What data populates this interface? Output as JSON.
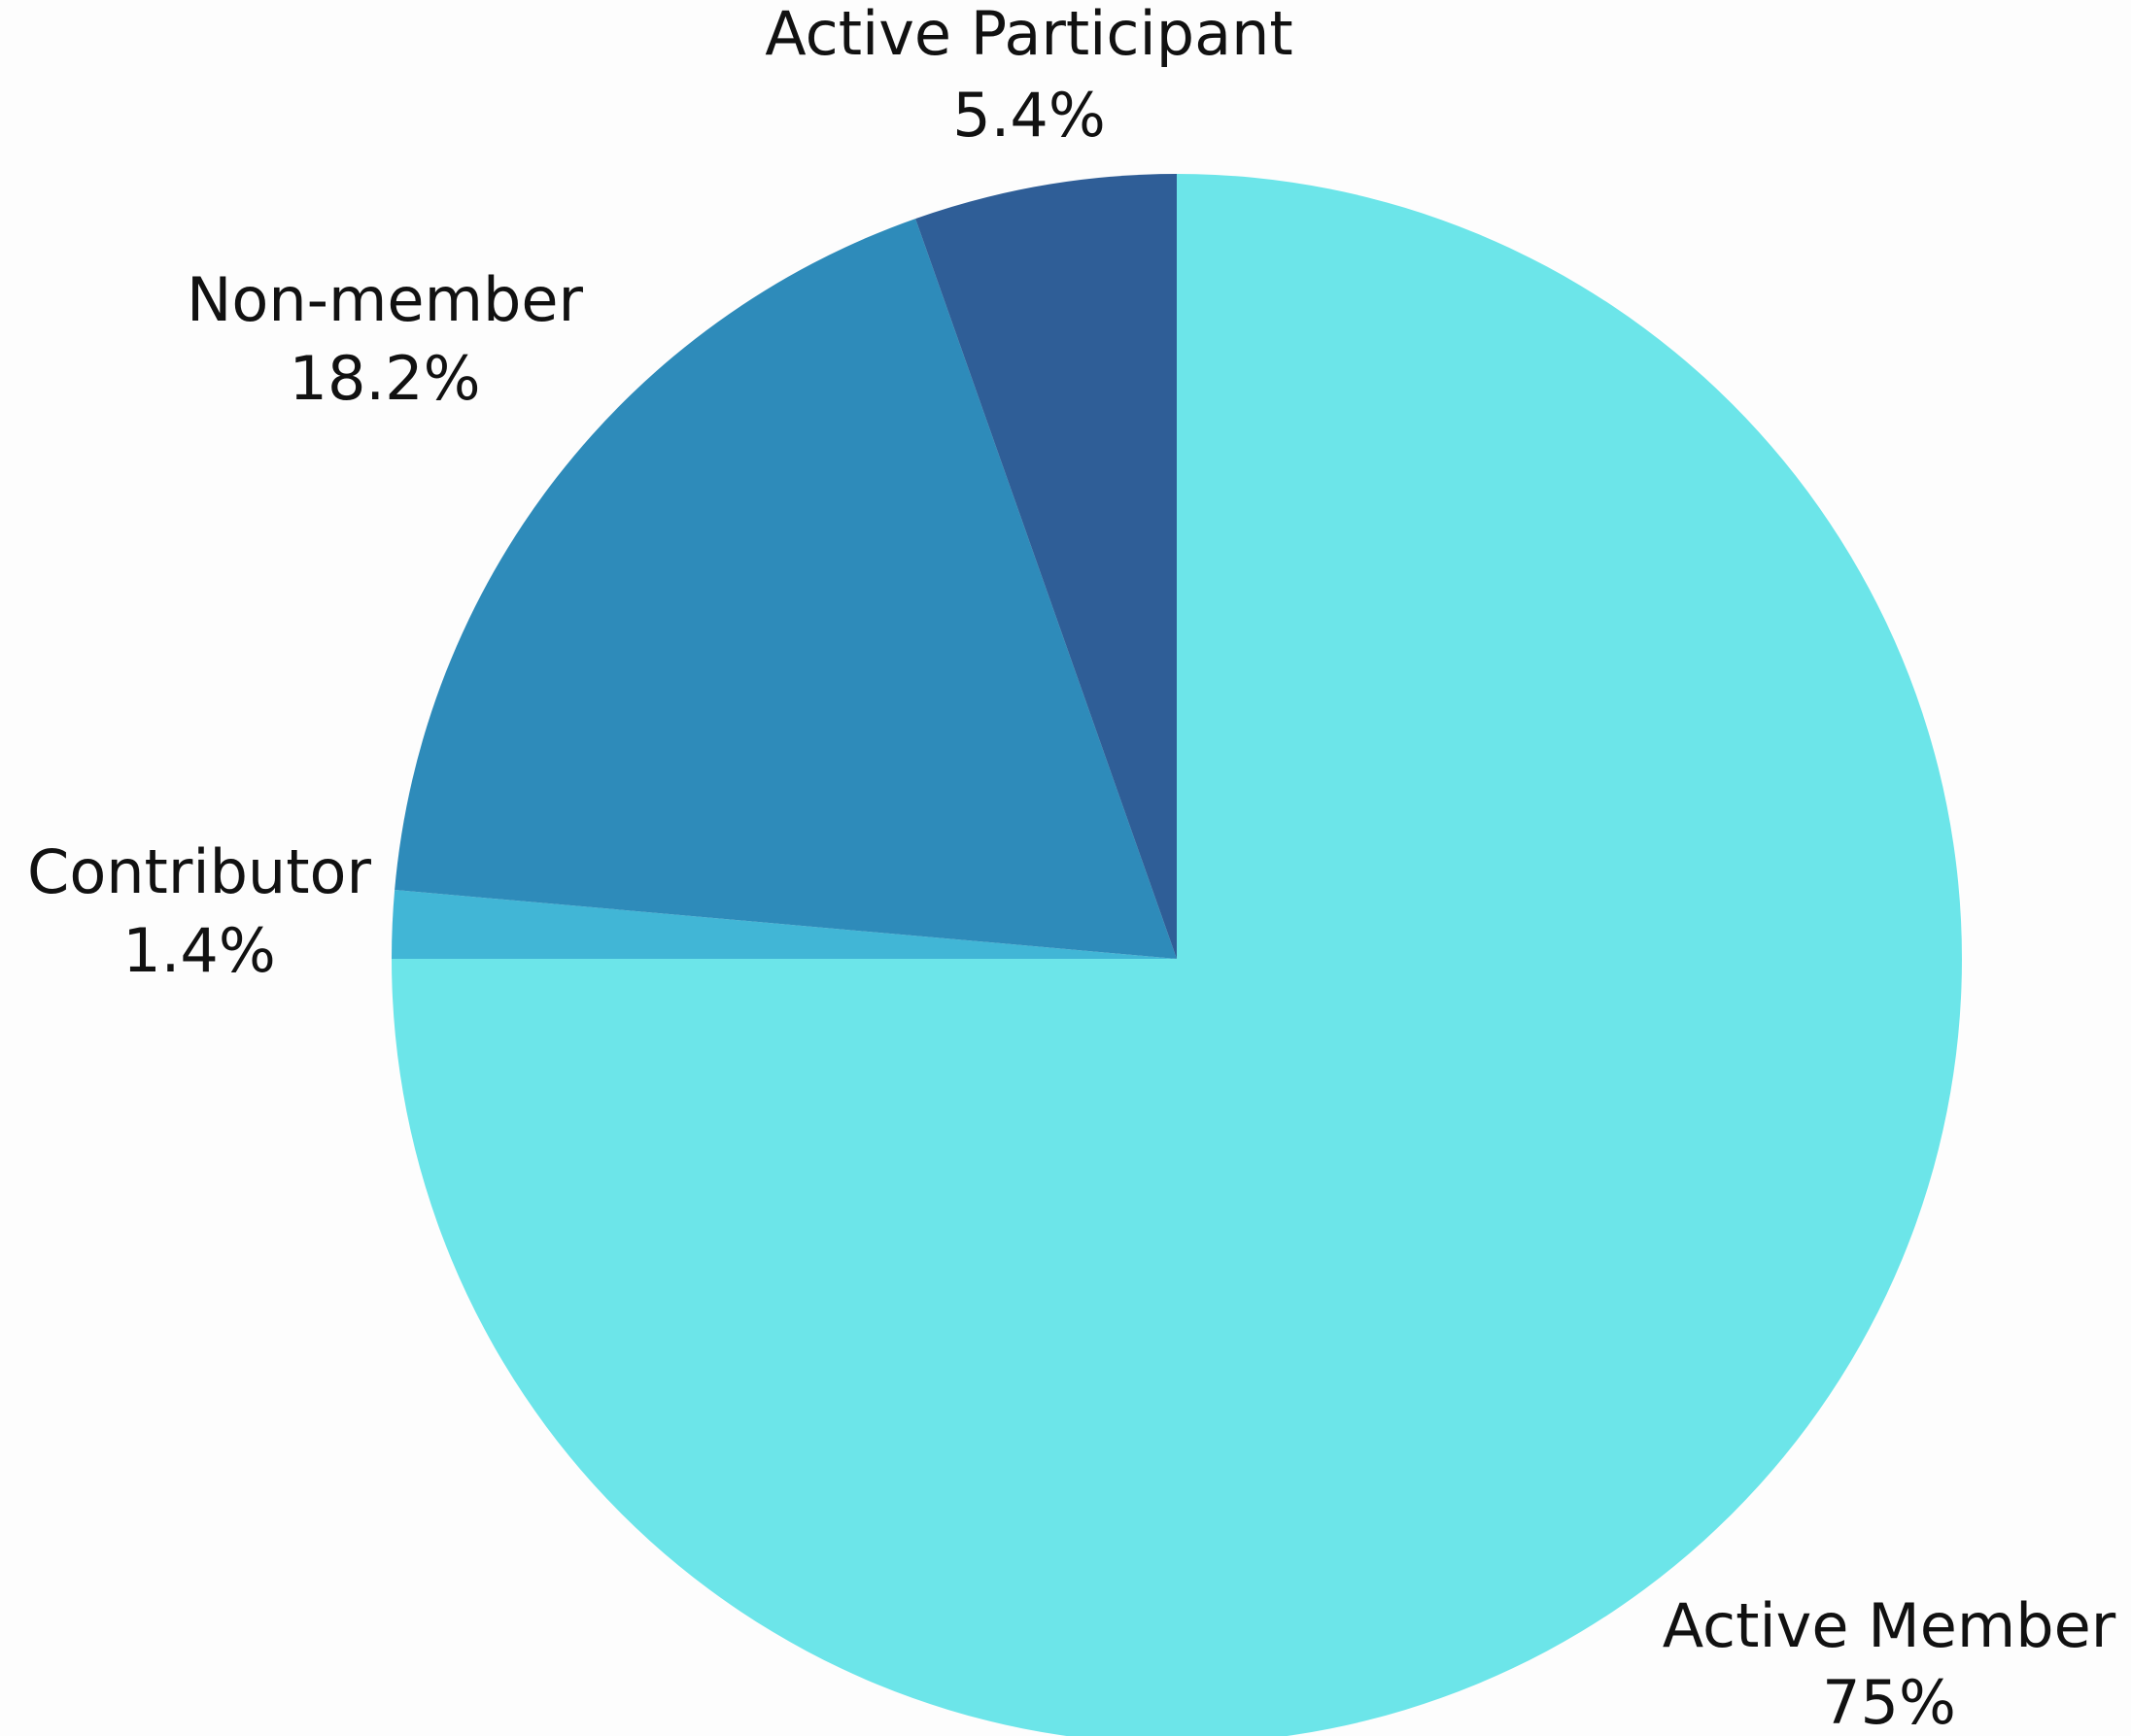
{
  "chart_data": {
    "type": "pie",
    "categories": [
      "Active Member",
      "Contributor",
      "Non-member",
      "Active Participant"
    ],
    "values": [
      75,
      1.4,
      18.2,
      5.4
    ],
    "value_labels": [
      "75%",
      "1.4%",
      "18.2%",
      "5.4%"
    ],
    "colors": [
      "#6ce5e9",
      "#41b6d6",
      "#2e8bba",
      "#2f5e97"
    ]
  }
}
